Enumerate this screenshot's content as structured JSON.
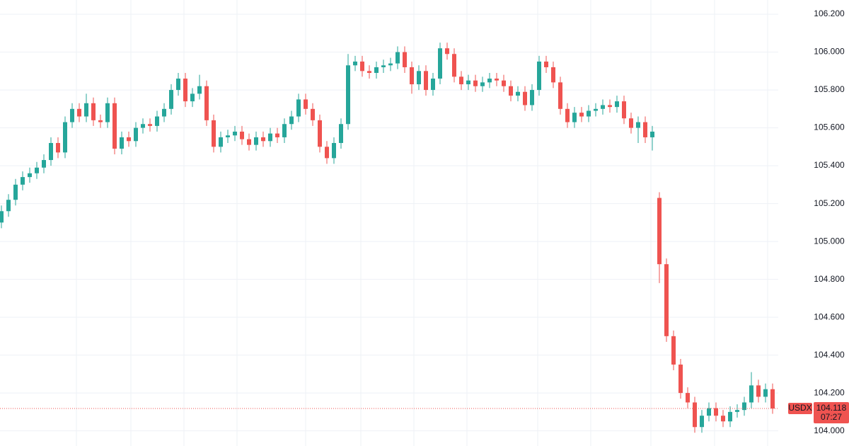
{
  "chart_data": {
    "type": "candlestick",
    "symbol": "USDX",
    "last_price": 104.118,
    "countdown": "07:27",
    "up_color": "#26a69a",
    "down_color": "#ef5350",
    "grid": true,
    "ylim": [
      103.92,
      106.275
    ],
    "yticks": [
      {
        "value": 104.0,
        "label": "104.000"
      },
      {
        "value": 104.2,
        "label": "104.200"
      },
      {
        "value": 104.4,
        "label": "104.400"
      },
      {
        "value": 104.6,
        "label": "104.600"
      },
      {
        "value": 104.8,
        "label": "104.800"
      },
      {
        "value": 105.0,
        "label": "105.000"
      },
      {
        "value": 105.2,
        "label": "105.200"
      },
      {
        "value": 105.4,
        "label": "105.400"
      },
      {
        "value": 105.6,
        "label": "105.600"
      },
      {
        "value": 105.8,
        "label": "105.800"
      },
      {
        "value": 106.0,
        "label": "106.000"
      },
      {
        "value": 106.2,
        "label": "106.200"
      }
    ],
    "open": [
      105.1,
      105.16,
      105.22,
      105.3,
      105.34,
      105.36,
      105.39,
      105.43,
      105.52,
      105.47,
      105.63,
      105.7,
      105.66,
      105.73,
      105.64,
      105.63,
      105.73,
      105.49,
      105.55,
      105.53,
      105.6,
      105.62,
      105.61,
      105.66,
      105.7,
      105.8,
      105.86,
      105.74,
      105.78,
      105.82,
      105.64,
      105.5,
      105.55,
      105.56,
      105.58,
      105.54,
      105.51,
      105.55,
      105.53,
      105.57,
      105.55,
      105.62,
      105.66,
      105.75,
      105.7,
      105.64,
      105.5,
      105.44,
      105.52,
      105.62,
      105.93,
      105.95,
      105.9,
      105.89,
      105.92,
      105.93,
      105.94,
      106.0,
      105.92,
      105.83,
      105.9,
      105.8,
      105.86,
      106.02,
      105.99,
      105.87,
      105.83,
      105.85,
      105.82,
      105.84,
      105.86,
      105.85,
      105.82,
      105.77,
      105.79,
      105.72,
      105.8,
      105.95,
      105.92,
      105.84,
      105.7,
      105.63,
      105.68,
      105.66,
      105.69,
      105.7,
      105.72,
      105.71,
      105.74,
      105.65,
      105.6,
      105.63,
      105.55,
      105.23,
      104.88,
      104.5,
      104.35,
      104.2,
      104.15,
      104.02,
      104.08,
      104.12,
      104.08,
      104.05,
      104.1,
      104.11,
      104.15,
      104.24,
      104.18,
      104.22
    ],
    "high": [
      105.19,
      105.25,
      105.33,
      105.37,
      105.39,
      105.42,
      105.46,
      105.55,
      105.55,
      105.66,
      105.73,
      105.73,
      105.78,
      105.76,
      105.67,
      105.76,
      105.76,
      105.58,
      105.58,
      105.63,
      105.65,
      105.65,
      105.69,
      105.73,
      105.83,
      105.89,
      105.89,
      105.81,
      105.88,
      105.85,
      105.67,
      105.58,
      105.59,
      105.61,
      105.61,
      105.57,
      105.58,
      105.58,
      105.6,
      105.6,
      105.65,
      105.69,
      105.78,
      105.78,
      105.73,
      105.67,
      105.53,
      105.55,
      105.65,
      105.99,
      105.98,
      105.98,
      105.93,
      105.95,
      105.96,
      105.97,
      106.03,
      106.03,
      105.95,
      105.93,
      105.93,
      105.89,
      106.05,
      106.05,
      106.02,
      105.9,
      105.88,
      105.88,
      105.87,
      105.89,
      105.89,
      105.88,
      105.85,
      105.82,
      105.82,
      105.83,
      105.98,
      105.98,
      105.95,
      105.87,
      105.73,
      105.71,
      105.71,
      105.72,
      105.73,
      105.75,
      105.75,
      105.77,
      105.77,
      105.68,
      105.66,
      105.66,
      105.61,
      105.26,
      104.91,
      104.53,
      104.38,
      104.23,
      104.18,
      104.11,
      104.15,
      104.15,
      104.11,
      104.13,
      104.14,
      104.18,
      104.31,
      104.27,
      104.25,
      104.25
    ],
    "low": [
      105.07,
      105.13,
      105.19,
      105.27,
      105.31,
      105.33,
      105.36,
      105.4,
      105.44,
      105.44,
      105.6,
      105.63,
      105.63,
      105.61,
      105.6,
      105.6,
      105.46,
      105.46,
      105.5,
      105.5,
      105.57,
      105.58,
      105.58,
      105.63,
      105.67,
      105.77,
      105.71,
      105.71,
      105.75,
      105.61,
      105.47,
      105.47,
      105.52,
      105.53,
      105.51,
      105.48,
      105.48,
      105.5,
      105.5,
      105.52,
      105.52,
      105.59,
      105.63,
      105.67,
      105.61,
      105.47,
      105.41,
      105.41,
      105.49,
      105.59,
      105.9,
      105.87,
      105.86,
      105.86,
      105.89,
      105.9,
      105.91,
      105.89,
      105.78,
      105.8,
      105.77,
      105.77,
      105.83,
      105.96,
      105.84,
      105.8,
      105.8,
      105.79,
      105.79,
      105.81,
      105.82,
      105.79,
      105.74,
      105.74,
      105.69,
      105.69,
      105.77,
      105.89,
      105.81,
      105.67,
      105.6,
      105.6,
      105.63,
      105.63,
      105.66,
      105.67,
      105.68,
      105.68,
      105.62,
      105.57,
      105.52,
      105.52,
      105.48,
      104.78,
      104.47,
      104.32,
      104.17,
      104.12,
      103.99,
      103.99,
      104.05,
      104.05,
      104.02,
      104.02,
      104.07,
      104.08,
      104.12,
      104.15,
      104.15,
      104.09
    ],
    "close": [
      105.16,
      105.22,
      105.3,
      105.34,
      105.36,
      105.39,
      105.43,
      105.52,
      105.47,
      105.63,
      105.7,
      105.66,
      105.73,
      105.64,
      105.63,
      105.73,
      105.49,
      105.55,
      105.53,
      105.6,
      105.62,
      105.61,
      105.66,
      105.7,
      105.8,
      105.86,
      105.74,
      105.78,
      105.82,
      105.64,
      105.5,
      105.55,
      105.56,
      105.58,
      105.54,
      105.51,
      105.55,
      105.53,
      105.57,
      105.55,
      105.62,
      105.66,
      105.75,
      105.7,
      105.64,
      105.5,
      105.44,
      105.52,
      105.62,
      105.93,
      105.95,
      105.9,
      105.89,
      105.92,
      105.93,
      105.94,
      106.0,
      105.92,
      105.83,
      105.9,
      105.8,
      105.86,
      106.02,
      105.99,
      105.87,
      105.83,
      105.85,
      105.82,
      105.84,
      105.86,
      105.85,
      105.82,
      105.77,
      105.79,
      105.72,
      105.8,
      105.95,
      105.92,
      105.84,
      105.7,
      105.63,
      105.68,
      105.66,
      105.69,
      105.7,
      105.72,
      105.71,
      105.74,
      105.65,
      105.6,
      105.63,
      105.55,
      105.58,
      104.88,
      104.5,
      104.35,
      104.2,
      104.15,
      104.02,
      104.08,
      104.12,
      104.08,
      104.05,
      104.1,
      104.11,
      104.15,
      104.24,
      104.18,
      104.22,
      104.118
    ]
  }
}
